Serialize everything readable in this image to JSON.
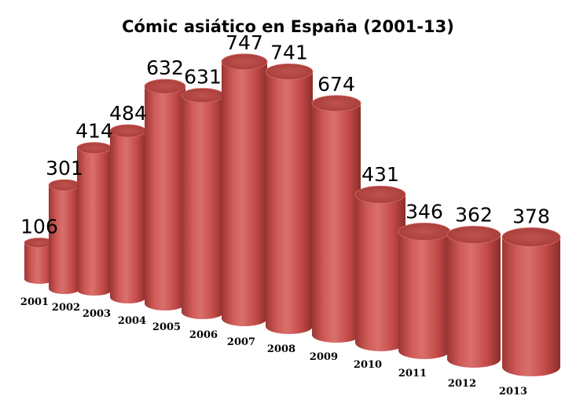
{
  "chart_data": {
    "type": "bar",
    "style": "3d-cylinder",
    "title": "Cómic asiático en España (2001-13)",
    "categories": [
      "2001",
      "2002",
      "2003",
      "2004",
      "2005",
      "2006",
      "2007",
      "2008",
      "2009",
      "2010",
      "2011",
      "2012",
      "2013"
    ],
    "values": [
      106,
      301,
      414,
      484,
      632,
      631,
      747,
      741,
      674,
      431,
      346,
      362,
      378
    ],
    "xlabel": "",
    "ylabel": "",
    "grid": false,
    "legend": "none",
    "colors": {
      "bar": "#c9504d",
      "bar_top": "#b84542",
      "bar_shadow": "#8e2f2d"
    }
  }
}
